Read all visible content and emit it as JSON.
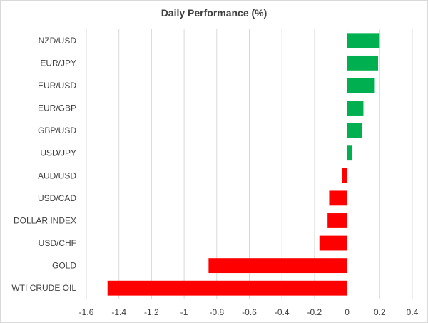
{
  "chart_data": {
    "type": "bar",
    "orientation": "horizontal",
    "title": "Daily Performance (%)",
    "xlabel": "",
    "ylabel": "",
    "xlim": [
      -1.6,
      0.4
    ],
    "x_ticks": [
      "-1.6",
      "-1.4",
      "-1.2",
      "-1",
      "-0.8",
      "-0.6",
      "-0.4",
      "-0.2",
      "0",
      "0.2",
      "0.4"
    ],
    "grid": "vertical",
    "categories": [
      "NZD/USD",
      "EUR/JPY",
      "EUR/USD",
      "EUR/GBP",
      "GBP/USD",
      "USD/JPY",
      "AUD/USD",
      "USD/CAD",
      "DOLLAR INDEX",
      "USD/CHF",
      "GOLD",
      "WTI CRUDE OIL"
    ],
    "values": [
      0.2,
      0.19,
      0.17,
      0.1,
      0.09,
      0.03,
      -0.03,
      -0.11,
      -0.12,
      -0.17,
      -0.85,
      -1.47
    ],
    "colors": {
      "positive": "#00b050",
      "negative": "#ff0000",
      "grid": "#d9d9d9",
      "text": "#404040"
    }
  }
}
